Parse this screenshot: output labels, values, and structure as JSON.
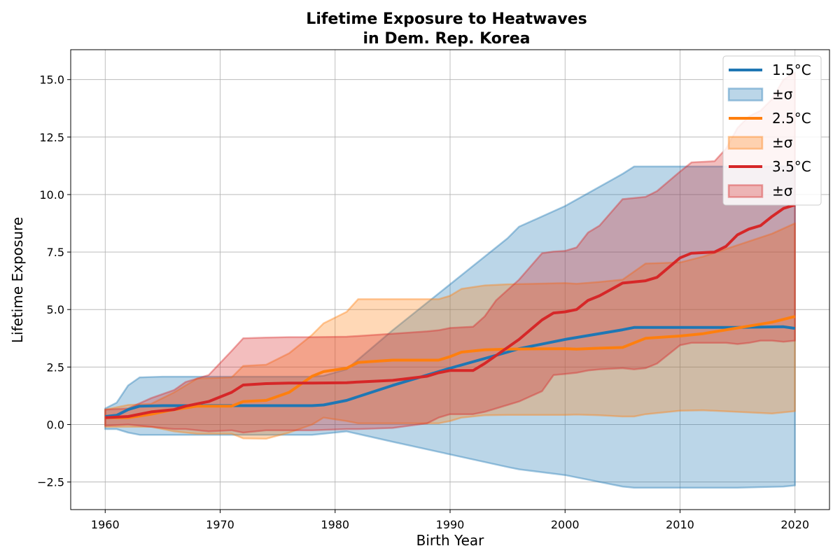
{
  "chart_data": {
    "type": "line",
    "title_line1": "Lifetime Exposure to Heatwaves",
    "title_line2": "in Dem. Rep. Korea",
    "xlabel": "Birth Year",
    "ylabel": "Lifetime Exposure",
    "xlim": [
      1957,
      2023
    ],
    "ylim": [
      -3.7,
      16.3
    ],
    "xticks": [
      1960,
      1970,
      1980,
      1990,
      2000,
      2010,
      2020
    ],
    "yticks": [
      -2.5,
      0.0,
      2.5,
      5.0,
      7.5,
      10.0,
      12.5,
      15.0
    ],
    "ytick_labels": [
      "−2.5",
      "0.0",
      "2.5",
      "5.0",
      "7.5",
      "10.0",
      "12.5",
      "15.0"
    ],
    "grid": true,
    "legend_position": "top-right",
    "series": [
      {
        "name": "1.5°C",
        "band_name": "±σ",
        "color": "#1f77b4",
        "x": [
          1960,
          1961,
          1962,
          1963,
          1965,
          1970,
          1975,
          1978,
          1979,
          1981,
          1985,
          1990,
          1995,
          1996,
          2000,
          2005,
          2006,
          2010,
          2015,
          2019,
          2020
        ],
        "y": [
          0.35,
          0.4,
          0.65,
          0.8,
          0.82,
          0.82,
          0.82,
          0.82,
          0.85,
          1.05,
          1.7,
          2.45,
          3.15,
          3.3,
          3.7,
          4.12,
          4.22,
          4.22,
          4.22,
          4.25,
          4.18
        ],
        "upper": [
          0.7,
          0.95,
          1.7,
          2.05,
          2.08,
          2.08,
          2.08,
          2.08,
          2.12,
          2.4,
          4.1,
          6.1,
          8.1,
          8.6,
          9.5,
          10.9,
          11.22,
          11.22,
          11.22,
          11.22,
          11.22
        ],
        "lower": [
          -0.2,
          -0.2,
          -0.35,
          -0.45,
          -0.45,
          -0.45,
          -0.45,
          -0.45,
          -0.4,
          -0.3,
          -0.75,
          -1.3,
          -1.85,
          -1.95,
          -2.2,
          -2.7,
          -2.75,
          -2.75,
          -2.75,
          -2.7,
          -2.65
        ]
      },
      {
        "name": "2.5°C",
        "band_name": "±σ",
        "color": "#ff7f0e",
        "x": [
          1960,
          1962,
          1964,
          1966,
          1968,
          1971,
          1972,
          1974,
          1976,
          1978,
          1979,
          1981,
          1982,
          1985,
          1989,
          1990,
          1991,
          1993,
          1995,
          2000,
          2001,
          2003,
          2005,
          2006,
          2007,
          2010,
          2012,
          2015,
          2018,
          2020
        ],
        "y": [
          0.3,
          0.3,
          0.45,
          0.65,
          0.8,
          0.8,
          1.0,
          1.05,
          1.4,
          2.1,
          2.3,
          2.45,
          2.7,
          2.8,
          2.8,
          2.95,
          3.15,
          3.25,
          3.28,
          3.3,
          3.28,
          3.32,
          3.35,
          3.55,
          3.75,
          3.85,
          3.95,
          4.2,
          4.45,
          4.7
        ],
        "upper": [
          0.65,
          0.85,
          0.9,
          1.4,
          2.0,
          2.05,
          2.55,
          2.6,
          3.1,
          3.9,
          4.4,
          4.9,
          5.45,
          5.45,
          5.45,
          5.6,
          5.9,
          6.05,
          6.1,
          6.15,
          6.12,
          6.2,
          6.3,
          6.65,
          7.0,
          7.05,
          7.3,
          7.8,
          8.3,
          8.75
        ],
        "lower": [
          -0.1,
          -0.1,
          -0.1,
          -0.3,
          -0.4,
          -0.4,
          -0.6,
          -0.62,
          -0.35,
          0.0,
          0.3,
          0.15,
          0.05,
          0.05,
          0.05,
          0.15,
          0.3,
          0.4,
          0.42,
          0.42,
          0.43,
          0.4,
          0.35,
          0.35,
          0.45,
          0.6,
          0.62,
          0.55,
          0.48,
          0.58
        ]
      },
      {
        "name": "3.5°C",
        "band_name": "±σ",
        "color": "#d62728",
        "x": [
          1960,
          1962,
          1964,
          1966,
          1967,
          1969,
          1971,
          1972,
          1974,
          1976,
          1978,
          1981,
          1982,
          1985,
          1988,
          1989,
          1990,
          1992,
          1993,
          1994,
          1996,
          1998,
          1999,
          2000,
          2001,
          2002,
          2003,
          2005,
          2006,
          2007,
          2008,
          2010,
          2011,
          2013,
          2014,
          2015,
          2016,
          2017,
          2018,
          2019,
          2020
        ],
        "y": [
          0.3,
          0.35,
          0.55,
          0.65,
          0.8,
          1.0,
          1.4,
          1.72,
          1.78,
          1.8,
          1.8,
          1.82,
          1.85,
          1.92,
          2.1,
          2.25,
          2.35,
          2.35,
          2.65,
          3.0,
          3.7,
          4.55,
          4.85,
          4.9,
          5.0,
          5.4,
          5.6,
          6.15,
          6.2,
          6.25,
          6.4,
          7.25,
          7.45,
          7.5,
          7.75,
          8.25,
          8.5,
          8.65,
          9.05,
          9.4,
          9.55
        ],
        "upper": [
          0.65,
          0.7,
          1.15,
          1.5,
          1.85,
          2.15,
          3.2,
          3.75,
          3.78,
          3.8,
          3.8,
          3.82,
          3.85,
          3.95,
          4.05,
          4.1,
          4.2,
          4.25,
          4.7,
          5.4,
          6.3,
          7.45,
          7.52,
          7.55,
          7.7,
          8.35,
          8.65,
          9.8,
          9.85,
          9.9,
          10.15,
          11.0,
          11.4,
          11.45,
          12.0,
          12.9,
          13.4,
          13.65,
          14.15,
          15.0,
          15.3
        ],
        "lower": [
          -0.05,
          0.0,
          -0.1,
          -0.2,
          -0.2,
          -0.3,
          -0.25,
          -0.35,
          -0.25,
          -0.25,
          -0.25,
          -0.2,
          -0.2,
          -0.15,
          0.05,
          0.3,
          0.45,
          0.45,
          0.55,
          0.7,
          1.0,
          1.45,
          2.15,
          2.2,
          2.25,
          2.35,
          2.4,
          2.45,
          2.4,
          2.45,
          2.65,
          3.45,
          3.55,
          3.55,
          3.55,
          3.5,
          3.55,
          3.65,
          3.65,
          3.6,
          3.65
        ]
      }
    ]
  }
}
